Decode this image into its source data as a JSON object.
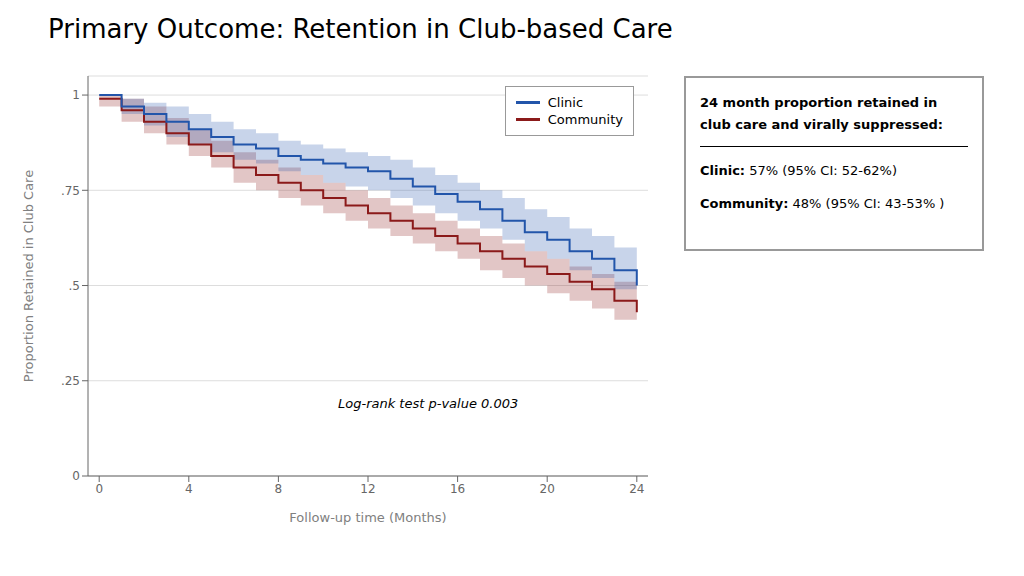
{
  "chart_data": {
    "type": "line",
    "title": "Primary Outcome: Retention in Club-based Care",
    "x_label": "Follow-up time (Months)",
    "y_label": "Proportion Retained in Club Care",
    "x": [
      0,
      1,
      2,
      3,
      4,
      5,
      6,
      7,
      8,
      9,
      10,
      11,
      12,
      13,
      14,
      15,
      16,
      17,
      18,
      19,
      20,
      21,
      22,
      23,
      24
    ],
    "xlim": [
      -0.5,
      24.5
    ],
    "xticks": [
      0,
      4,
      8,
      12,
      16,
      20,
      24
    ],
    "ylim": [
      0,
      1.05
    ],
    "yticks": [
      0,
      {
        "value": 0.25,
        "label": ".25"
      },
      {
        "value": 0.5,
        "label": ".5"
      },
      {
        "value": 0.75,
        "label": ".75"
      },
      1
    ],
    "grid": true,
    "legend": "upper right",
    "line_style": "step",
    "series": [
      {
        "name": "Clinic",
        "color": "#2255AA",
        "values": [
          1.0,
          0.97,
          0.95,
          0.93,
          0.91,
          0.89,
          0.87,
          0.86,
          0.84,
          0.83,
          0.82,
          0.81,
          0.8,
          0.78,
          0.76,
          0.74,
          0.72,
          0.7,
          0.67,
          0.64,
          0.62,
          0.59,
          0.57,
          0.54,
          0.5
        ],
        "lower": [
          1.0,
          0.95,
          0.92,
          0.89,
          0.87,
          0.85,
          0.83,
          0.82,
          0.8,
          0.79,
          0.77,
          0.76,
          0.75,
          0.73,
          0.71,
          0.69,
          0.67,
          0.65,
          0.62,
          0.59,
          0.57,
          0.54,
          0.52,
          0.49,
          0.45
        ],
        "upper": [
          1.0,
          0.99,
          0.98,
          0.97,
          0.95,
          0.93,
          0.91,
          0.9,
          0.88,
          0.87,
          0.86,
          0.85,
          0.84,
          0.83,
          0.81,
          0.79,
          0.77,
          0.75,
          0.73,
          0.7,
          0.68,
          0.65,
          0.63,
          0.6,
          0.56
        ]
      },
      {
        "name": "Community",
        "color": "#8B1A1A",
        "values": [
          0.99,
          0.96,
          0.93,
          0.9,
          0.87,
          0.84,
          0.81,
          0.79,
          0.77,
          0.75,
          0.73,
          0.71,
          0.69,
          0.67,
          0.65,
          0.63,
          0.61,
          0.59,
          0.57,
          0.55,
          0.53,
          0.51,
          0.49,
          0.46,
          0.43
        ],
        "lower": [
          0.97,
          0.93,
          0.9,
          0.87,
          0.84,
          0.81,
          0.77,
          0.75,
          0.73,
          0.71,
          0.69,
          0.67,
          0.65,
          0.63,
          0.61,
          0.59,
          0.57,
          0.54,
          0.52,
          0.5,
          0.48,
          0.46,
          0.44,
          0.41,
          0.37
        ],
        "upper": [
          1.0,
          0.99,
          0.97,
          0.94,
          0.91,
          0.88,
          0.85,
          0.83,
          0.81,
          0.79,
          0.77,
          0.75,
          0.73,
          0.71,
          0.69,
          0.67,
          0.65,
          0.63,
          0.61,
          0.59,
          0.57,
          0.55,
          0.53,
          0.51,
          0.48
        ]
      }
    ],
    "annotations": [
      "Log-rank test p-value 0.003"
    ],
    "annotation_box": {
      "title": [
        "24 month proportion retained in",
        "club care and virally suppressed:"
      ],
      "rows": [
        {
          "label": "Clinic:",
          "text": " 57% (95% CI: 52-62%)"
        },
        {
          "label": "Community:",
          "text": " 48% (95% CI: 43-53% )"
        }
      ]
    }
  }
}
